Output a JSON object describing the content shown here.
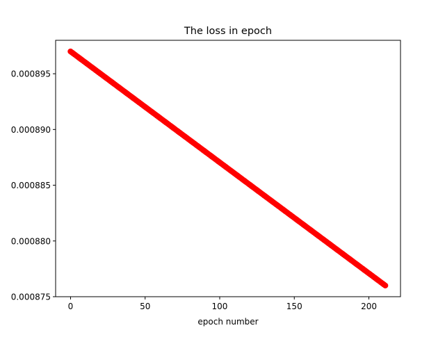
{
  "chart_data": {
    "type": "scatter",
    "title": "The loss in epoch",
    "xlabel": "epoch number",
    "ylabel": "",
    "xlim": [
      -10,
      221.2
    ],
    "ylim": [
      0.000875,
      0.000898
    ],
    "xticks": [
      0,
      50,
      100,
      150,
      200
    ],
    "xtick_labels": [
      "0",
      "50",
      "100",
      "150",
      "200"
    ],
    "yticks": [
      0.000875,
      0.00088,
      0.000885,
      0.00089,
      0.000895
    ],
    "ytick_labels": [
      "0.000875",
      "0.000880",
      "0.000885",
      "0.000890",
      "0.000895"
    ],
    "grid": false,
    "legend": "none",
    "marker": "o",
    "point_color": "#ff0000",
    "series": [
      {
        "x_start": 0,
        "x_end": 211,
        "x_step": 1,
        "y_start": 0.000897,
        "y_end": 0.000876
      }
    ]
  }
}
